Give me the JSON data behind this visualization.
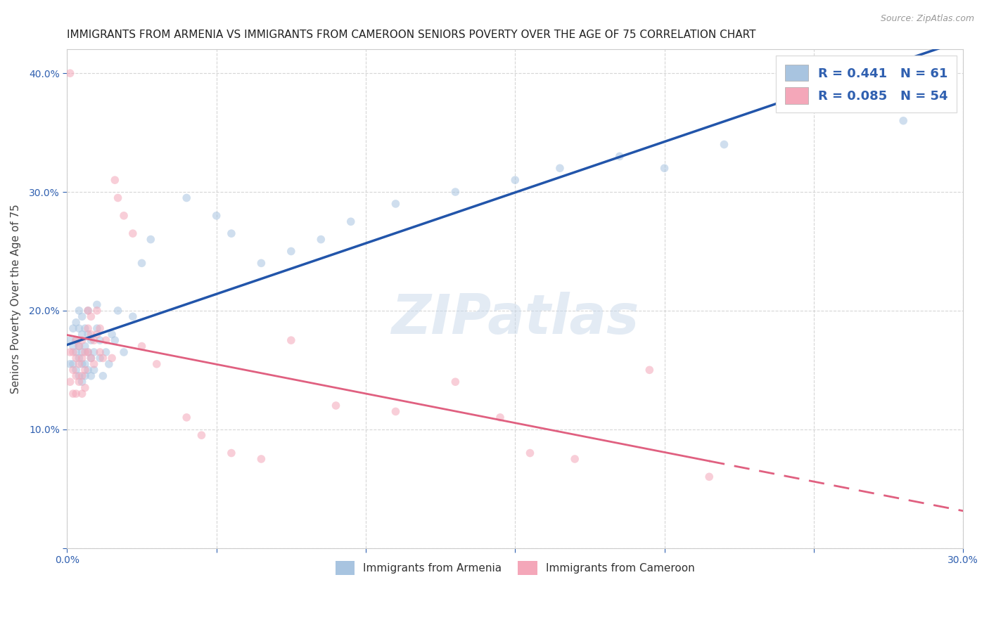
{
  "title": "IMMIGRANTS FROM ARMENIA VS IMMIGRANTS FROM CAMEROON SENIORS POVERTY OVER THE AGE OF 75 CORRELATION CHART",
  "source": "Source: ZipAtlas.com",
  "ylabel": "Seniors Poverty Over the Age of 75",
  "xlim": [
    0,
    0.3
  ],
  "ylim": [
    0,
    0.42
  ],
  "watermark": "ZIPatlas",
  "legend_r_armenia": "R = 0.441",
  "legend_n_armenia": "N = 61",
  "legend_r_cameroon": "R = 0.085",
  "legend_n_cameroon": "N = 54",
  "armenia_color": "#a8c4e0",
  "cameroon_color": "#f4a7b9",
  "line_armenia_color": "#2255aa",
  "line_cameroon_color": "#e06080",
  "background_color": "#ffffff",
  "grid_color": "#cccccc",
  "title_fontsize": 11,
  "axis_label_fontsize": 11,
  "tick_fontsize": 10,
  "marker_size": 70,
  "marker_alpha": 0.55,
  "armenia_x": [
    0.001,
    0.001,
    0.002,
    0.002,
    0.002,
    0.003,
    0.003,
    0.003,
    0.003,
    0.004,
    0.004,
    0.004,
    0.004,
    0.004,
    0.005,
    0.005,
    0.005,
    0.005,
    0.005,
    0.006,
    0.006,
    0.006,
    0.006,
    0.007,
    0.007,
    0.007,
    0.007,
    0.008,
    0.008,
    0.008,
    0.009,
    0.009,
    0.01,
    0.01,
    0.011,
    0.011,
    0.012,
    0.013,
    0.014,
    0.015,
    0.016,
    0.017,
    0.019,
    0.022,
    0.025,
    0.028,
    0.04,
    0.05,
    0.055,
    0.065,
    0.075,
    0.085,
    0.095,
    0.11,
    0.13,
    0.15,
    0.165,
    0.185,
    0.2,
    0.22,
    0.28
  ],
  "armenia_y": [
    0.175,
    0.155,
    0.185,
    0.17,
    0.155,
    0.19,
    0.175,
    0.165,
    0.15,
    0.2,
    0.185,
    0.17,
    0.16,
    0.145,
    0.195,
    0.18,
    0.165,
    0.155,
    0.14,
    0.185,
    0.17,
    0.155,
    0.145,
    0.2,
    0.18,
    0.165,
    0.15,
    0.175,
    0.16,
    0.145,
    0.165,
    0.15,
    0.205,
    0.185,
    0.175,
    0.16,
    0.145,
    0.165,
    0.155,
    0.18,
    0.175,
    0.2,
    0.165,
    0.195,
    0.24,
    0.26,
    0.295,
    0.28,
    0.265,
    0.24,
    0.25,
    0.26,
    0.275,
    0.29,
    0.3,
    0.31,
    0.32,
    0.33,
    0.32,
    0.34,
    0.36
  ],
  "cameroon_x": [
    0.001,
    0.001,
    0.001,
    0.002,
    0.002,
    0.002,
    0.003,
    0.003,
    0.003,
    0.003,
    0.004,
    0.004,
    0.004,
    0.005,
    0.005,
    0.005,
    0.005,
    0.006,
    0.006,
    0.006,
    0.007,
    0.007,
    0.007,
    0.008,
    0.008,
    0.008,
    0.009,
    0.009,
    0.01,
    0.01,
    0.011,
    0.011,
    0.012,
    0.013,
    0.015,
    0.016,
    0.017,
    0.019,
    0.022,
    0.025,
    0.03,
    0.04,
    0.045,
    0.055,
    0.065,
    0.075,
    0.09,
    0.11,
    0.13,
    0.145,
    0.155,
    0.17,
    0.195,
    0.215
  ],
  "cameroon_y": [
    0.4,
    0.165,
    0.14,
    0.165,
    0.15,
    0.13,
    0.175,
    0.16,
    0.145,
    0.13,
    0.17,
    0.155,
    0.14,
    0.175,
    0.16,
    0.145,
    0.13,
    0.165,
    0.15,
    0.135,
    0.2,
    0.185,
    0.165,
    0.195,
    0.18,
    0.16,
    0.175,
    0.155,
    0.2,
    0.18,
    0.185,
    0.165,
    0.16,
    0.175,
    0.16,
    0.31,
    0.295,
    0.28,
    0.265,
    0.17,
    0.155,
    0.11,
    0.095,
    0.08,
    0.075,
    0.175,
    0.12,
    0.115,
    0.14,
    0.11,
    0.08,
    0.075,
    0.15,
    0.06
  ]
}
